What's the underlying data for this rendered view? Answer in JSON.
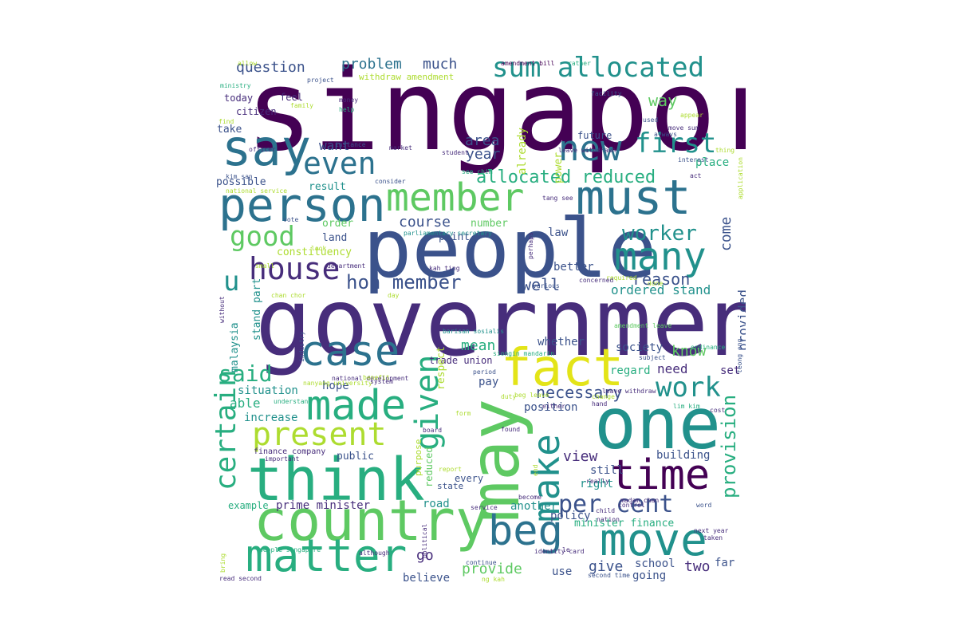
{
  "colors": {
    "dp": "#440154",
    "pu": "#472d7b",
    "bl": "#3b528b",
    "sb": "#2c728e",
    "tl": "#21918c",
    "gr": "#28ae80",
    "lg": "#5ec962",
    "yg": "#addc30",
    "ye": "#e3e418"
  },
  "words": [
    {
      "text": "singapore",
      "size": 140,
      "color": "dp"
    },
    {
      "text": "government",
      "size": 118,
      "color": "pu"
    },
    {
      "text": "people",
      "size": 102,
      "color": "bl"
    },
    {
      "text": "one",
      "size": 88,
      "color": "tl"
    },
    {
      "text": "may",
      "size": 86,
      "color": "lg"
    },
    {
      "text": "think",
      "size": 74,
      "color": "gr"
    },
    {
      "text": "country",
      "size": 70,
      "color": "lg"
    },
    {
      "text": "fact",
      "size": 64,
      "color": "ye"
    },
    {
      "text": "say",
      "size": 62,
      "color": "sb"
    },
    {
      "text": "must",
      "size": 60,
      "color": "sb"
    },
    {
      "text": "person",
      "size": 58,
      "color": "sb"
    },
    {
      "text": "matter",
      "size": 56,
      "color": "gr"
    },
    {
      "text": "move",
      "size": 56,
      "color": "tl"
    },
    {
      "text": "made",
      "size": 52,
      "color": "gr"
    },
    {
      "text": "beg",
      "size": 52,
      "color": "sb"
    },
    {
      "text": "case",
      "size": 52,
      "color": "sb"
    },
    {
      "text": "time",
      "size": 52,
      "color": "dp"
    },
    {
      "text": "many",
      "size": 48,
      "color": "tl"
    },
    {
      "text": "member",
      "size": 48,
      "color": "lg"
    },
    {
      "text": "new",
      "size": 44,
      "color": "sb"
    },
    {
      "text": "make",
      "size": 46,
      "color": "tl"
    },
    {
      "text": "present",
      "size": 40,
      "color": "yg"
    },
    {
      "text": "given",
      "size": 40,
      "color": "gr"
    },
    {
      "text": "house",
      "size": 38,
      "color": "pu"
    },
    {
      "text": "even",
      "size": 38,
      "color": "sb"
    },
    {
      "text": "certain",
      "size": 36,
      "color": "gr"
    },
    {
      "text": "sum allocated",
      "size": 34,
      "color": "tl"
    },
    {
      "text": "good",
      "size": 34,
      "color": "lg"
    },
    {
      "text": "work",
      "size": 34,
      "color": "tl"
    },
    {
      "text": "first",
      "size": 34,
      "color": "tl"
    },
    {
      "text": "u",
      "size": 34,
      "color": "tl"
    },
    {
      "text": "per cent",
      "size": 30,
      "color": "bl"
    },
    {
      "text": "said",
      "size": 28,
      "color": "gr"
    },
    {
      "text": "worker",
      "size": 26,
      "color": "tl"
    },
    {
      "text": "hon member",
      "size": 24,
      "color": "bl"
    },
    {
      "text": "provision",
      "size": 24,
      "color": "gr"
    },
    {
      "text": "allocated reduced",
      "size": 22,
      "color": "gr"
    },
    {
      "text": "necessary",
      "size": 20,
      "color": "bl"
    },
    {
      "text": "well",
      "size": 20,
      "color": "bl"
    },
    {
      "text": "reason",
      "size": 20,
      "color": "bl"
    },
    {
      "text": "way",
      "size": 20,
      "color": "lg"
    },
    {
      "text": "question",
      "size": 18,
      "color": "bl"
    },
    {
      "text": "problem",
      "size": 18,
      "color": "sb"
    },
    {
      "text": "much",
      "size": 18,
      "color": "bl"
    },
    {
      "text": "area",
      "size": 18,
      "color": "bl"
    },
    {
      "text": "year",
      "size": 18,
      "color": "bl"
    },
    {
      "text": "course",
      "size": 18,
      "color": "bl"
    },
    {
      "text": "come",
      "size": 18,
      "color": "bl"
    },
    {
      "text": "ordered stand",
      "size": 16,
      "color": "tl"
    },
    {
      "text": "know",
      "size": 18,
      "color": "lg"
    },
    {
      "text": "provided",
      "size": 16,
      "color": "bl"
    },
    {
      "text": "mean",
      "size": 18,
      "color": "gr"
    },
    {
      "text": "view",
      "size": 18,
      "color": "pu"
    },
    {
      "text": "provide",
      "size": 18,
      "color": "lg"
    },
    {
      "text": "give",
      "size": 18,
      "color": "bl"
    },
    {
      "text": "two",
      "size": 18,
      "color": "pu"
    },
    {
      "text": "go",
      "size": 18,
      "color": "pu"
    },
    {
      "text": "want",
      "size": 16,
      "color": "bl"
    },
    {
      "text": "already",
      "size": 14,
      "color": "yg"
    },
    {
      "text": "power",
      "size": 13,
      "color": "yg"
    },
    {
      "text": "place",
      "size": 14,
      "color": "gr"
    },
    {
      "text": "need",
      "size": 16,
      "color": "pu"
    },
    {
      "text": "set",
      "size": 14,
      "color": "pu"
    },
    {
      "text": "regard",
      "size": 14,
      "color": "gr"
    },
    {
      "text": "society",
      "size": 14,
      "color": "bl"
    },
    {
      "text": "whether",
      "size": 14,
      "color": "bl"
    },
    {
      "text": "better",
      "size": 14,
      "color": "bl"
    },
    {
      "text": "law",
      "size": 14,
      "color": "bl"
    },
    {
      "text": "point",
      "size": 13,
      "color": "bl"
    },
    {
      "text": "number",
      "size": 13,
      "color": "lg"
    },
    {
      "text": "order",
      "size": 13,
      "color": "lg"
    },
    {
      "text": "land",
      "size": 13,
      "color": "bl"
    },
    {
      "text": "constituency",
      "size": 13,
      "color": "yg"
    },
    {
      "text": "possible",
      "size": 13,
      "color": "bl"
    },
    {
      "text": "result",
      "size": 13,
      "color": "tl"
    },
    {
      "text": "take",
      "size": 13,
      "color": "bl"
    },
    {
      "text": "today",
      "size": 12,
      "color": "pu"
    },
    {
      "text": "citizen",
      "size": 12,
      "color": "pu"
    },
    {
      "text": "feel",
      "size": 12,
      "color": "pu"
    },
    {
      "text": "future",
      "size": 12,
      "color": "bl"
    },
    {
      "text": "withdraw amendment",
      "size": 11,
      "color": "yg"
    },
    {
      "text": "situation",
      "size": 14,
      "color": "tl"
    },
    {
      "text": "able",
      "size": 16,
      "color": "gr"
    },
    {
      "text": "increase",
      "size": 14,
      "color": "tl"
    },
    {
      "text": "hope",
      "size": 14,
      "color": "bl"
    },
    {
      "text": "pay",
      "size": 14,
      "color": "bl"
    },
    {
      "text": "position",
      "size": 14,
      "color": "bl"
    },
    {
      "text": "trade union",
      "size": 12,
      "color": "pu"
    },
    {
      "text": "respect",
      "size": 13,
      "color": "yg"
    },
    {
      "text": "malaysia",
      "size": 13,
      "color": "tl"
    },
    {
      "text": "stand part",
      "size": 13,
      "color": "tl"
    },
    {
      "text": "public",
      "size": 13,
      "color": "bl"
    },
    {
      "text": "building",
      "size": 14,
      "color": "bl"
    },
    {
      "text": "still",
      "size": 14,
      "color": "bl"
    },
    {
      "text": "right",
      "size": 14,
      "color": "tl"
    },
    {
      "text": "another",
      "size": 14,
      "color": "tl"
    },
    {
      "text": "policy",
      "size": 14,
      "color": "bl"
    },
    {
      "text": "minister finance",
      "size": 13,
      "color": "gr"
    },
    {
      "text": "school",
      "size": 14,
      "color": "bl"
    },
    {
      "text": "going",
      "size": 14,
      "color": "bl"
    },
    {
      "text": "far",
      "size": 14,
      "color": "bl"
    },
    {
      "text": "use",
      "size": 14,
      "color": "bl"
    },
    {
      "text": "believe",
      "size": 14,
      "color": "bl"
    },
    {
      "text": "road",
      "size": 14,
      "color": "tl"
    },
    {
      "text": "prime minister",
      "size": 14,
      "color": "pu"
    },
    {
      "text": "example",
      "size": 12,
      "color": "gr"
    },
    {
      "text": "every",
      "size": 12,
      "color": "bl"
    },
    {
      "text": "state",
      "size": 11,
      "color": "bl"
    },
    {
      "text": "purpose",
      "size": 11,
      "color": "yg"
    },
    {
      "text": "reduced",
      "size": 12,
      "color": "lg"
    },
    {
      "text": "finance company",
      "size": 10,
      "color": "pu"
    },
    {
      "text": "amendment bill",
      "size": 8,
      "color": "dp"
    },
    {
      "text": "rather",
      "size": 8,
      "color": "gr"
    },
    {
      "text": "allow",
      "size": 8,
      "color": "yg"
    },
    {
      "text": "project",
      "size": 8,
      "color": "bl"
    },
    {
      "text": "ministry",
      "size": 8,
      "color": "gr"
    },
    {
      "text": "family",
      "size": 8,
      "color": "yg"
    },
    {
      "text": "money",
      "size": 8,
      "color": "pu"
    },
    {
      "text": "help",
      "size": 8,
      "color": "gr"
    },
    {
      "text": "find",
      "size": 8,
      "color": "yg"
    },
    {
      "text": "instance",
      "size": 8,
      "color": "bl"
    },
    {
      "text": "officer",
      "size": 8,
      "color": "pu"
    },
    {
      "text": "market",
      "size": 8,
      "color": "pu"
    },
    {
      "text": "student",
      "size": 8,
      "color": "pu"
    },
    {
      "text": "see chim",
      "size": 8,
      "color": "gr"
    },
    {
      "text": "consider",
      "size": 8,
      "color": "bl"
    },
    {
      "text": "kim san",
      "size": 8,
      "color": "bl"
    },
    {
      "text": "national service",
      "size": 8,
      "color": "yg"
    },
    {
      "text": "tang see",
      "size": 8,
      "color": "pu"
    },
    {
      "text": "facility",
      "size": 8,
      "color": "bl"
    },
    {
      "text": "used",
      "size": 8,
      "color": "bl"
    },
    {
      "text": "always",
      "size": 8,
      "color": "bl"
    },
    {
      "text": "move sum",
      "size": 8,
      "color": "pu"
    },
    {
      "text": "appear",
      "size": 8,
      "color": "yg"
    },
    {
      "text": "interest",
      "size": 8,
      "color": "bl"
    },
    {
      "text": "thing",
      "size": 8,
      "color": "yg"
    },
    {
      "text": "act",
      "size": 8,
      "color": "pu"
    },
    {
      "text": "fund",
      "size": 8,
      "color": "pu"
    },
    {
      "text": "application",
      "size": 8,
      "color": "yg"
    },
    {
      "text": "vote",
      "size": 8,
      "color": "bl"
    },
    {
      "text": "parliamentary secretary",
      "size": 8,
      "color": "tl"
    },
    {
      "text": "look",
      "size": 8,
      "color": "yg"
    },
    {
      "text": "small",
      "size": 8,
      "color": "yg"
    },
    {
      "text": "department",
      "size": 8,
      "color": "pu"
    },
    {
      "text": "kah ting",
      "size": 8,
      "color": "pu"
    },
    {
      "text": "perhaps",
      "size": 8,
      "color": "pu"
    },
    {
      "text": "required",
      "size": 8,
      "color": "yg"
    },
    {
      "text": "done",
      "size": 8,
      "color": "yg"
    },
    {
      "text": "various",
      "size": 8,
      "color": "bl"
    },
    {
      "text": "concerned",
      "size": 8,
      "color": "pu"
    },
    {
      "text": "chan chor",
      "size": 8,
      "color": "yg"
    },
    {
      "text": "day",
      "size": 8,
      "color": "yg"
    },
    {
      "text": "amendment leave",
      "size": 8,
      "color": "lg"
    },
    {
      "text": "without",
      "size": 8,
      "color": "pu"
    },
    {
      "text": "industry",
      "size": 8,
      "color": "bl"
    },
    {
      "text": "barisan sosialis",
      "size": 8,
      "color": "tl"
    },
    {
      "text": "siongin mandarin",
      "size": 8,
      "color": "gr"
    },
    {
      "text": "ordinance",
      "size": 8,
      "color": "gr"
    },
    {
      "text": "subject",
      "size": 8,
      "color": "bl"
    },
    {
      "text": "teong eng",
      "size": 8,
      "color": "bl"
    },
    {
      "text": "national development",
      "size": 8,
      "color": "pu"
    },
    {
      "text": "nanyang university",
      "size": 8,
      "color": "yg"
    },
    {
      "text": "system",
      "size": 8,
      "color": "pu"
    },
    {
      "text": "period",
      "size": 8,
      "color": "bl"
    },
    {
      "text": "leave withdraw",
      "size": 8,
      "color": "pu"
    },
    {
      "text": "understand",
      "size": 8,
      "color": "gr"
    },
    {
      "text": "duty",
      "size": 8,
      "color": "yg"
    },
    {
      "text": "change",
      "size": 8,
      "color": "yg"
    },
    {
      "text": "hand",
      "size": 8,
      "color": "pu"
    },
    {
      "text": "lim kim",
      "size": 8,
      "color": "gr"
    },
    {
      "text": "cost",
      "size": 8,
      "color": "pu"
    },
    {
      "text": "form",
      "size": 8,
      "color": "yg"
    },
    {
      "text": "either",
      "size": 8,
      "color": "pu"
    },
    {
      "text": "found",
      "size": 8,
      "color": "pu"
    },
    {
      "text": "board",
      "size": 8,
      "color": "pu"
    },
    {
      "text": "important",
      "size": 8,
      "color": "pu"
    },
    {
      "text": "report",
      "size": 8,
      "color": "yg"
    },
    {
      "text": "end",
      "size": 8,
      "color": "yg"
    },
    {
      "text": "really",
      "size": 8,
      "color": "pu"
    },
    {
      "text": "become",
      "size": 8,
      "color": "pu"
    },
    {
      "text": "madam chan",
      "size": 8,
      "color": "pu"
    },
    {
      "text": "control",
      "size": 8,
      "color": "pu"
    },
    {
      "text": "child",
      "size": 8,
      "color": "pu"
    },
    {
      "text": "word",
      "size": 8,
      "color": "bl"
    },
    {
      "text": "service",
      "size": 8,
      "color": "pu"
    },
    {
      "text": "nation",
      "size": 8,
      "color": "pu"
    },
    {
      "text": "next year",
      "size": 8,
      "color": "pu"
    },
    {
      "text": "taken",
      "size": 8,
      "color": "pu"
    },
    {
      "text": "bring",
      "size": 8,
      "color": "yg"
    },
    {
      "text": "people singapore",
      "size": 8,
      "color": "gr"
    },
    {
      "text": "although",
      "size": 8,
      "color": "pu"
    },
    {
      "text": "identity card",
      "size": 8,
      "color": "pu"
    },
    {
      "text": "le",
      "size": 8,
      "color": "pu"
    },
    {
      "text": "continue",
      "size": 8,
      "color": "bl"
    },
    {
      "text": "read second",
      "size": 8,
      "color": "pu"
    },
    {
      "text": "ng kah",
      "size": 8,
      "color": "yg"
    },
    {
      "text": "second time",
      "size": 8,
      "color": "bl"
    },
    {
      "text": "political",
      "size": 8,
      "color": "pu"
    },
    {
      "text": "leave withdrawn",
      "size": 8,
      "color": "pu"
    },
    {
      "text": "beg leave",
      "size": 8,
      "color": "yg"
    },
    {
      "text": "benefit",
      "size": 8,
      "color": "yg"
    },
    {
      "text": "particular",
      "size": 8,
      "color": "pu"
    }
  ]
}
